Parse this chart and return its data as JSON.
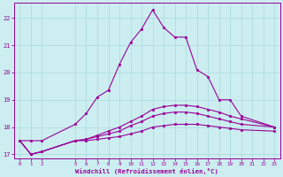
{
  "xlabel": "Windchill (Refroidissement éolien,°C)",
  "bg_color": "#cceef0",
  "grid_color": "#aad8dc",
  "line_color": "#990099",
  "xlim": [
    -0.5,
    23.5
  ],
  "ylim": [
    16.85,
    22.55
  ],
  "xticks": [
    0,
    1,
    2,
    5,
    6,
    7,
    8,
    9,
    10,
    11,
    12,
    13,
    14,
    15,
    16,
    17,
    18,
    19,
    20,
    21,
    22,
    23
  ],
  "yticks": [
    17,
    18,
    19,
    20,
    21,
    22
  ],
  "series": [
    {
      "x": [
        0,
        1,
        2,
        5,
        6,
        7,
        8,
        9,
        10,
        11,
        12,
        13,
        14,
        15,
        16,
        17,
        18,
        19,
        20,
        23
      ],
      "y": [
        17.5,
        17.5,
        17.5,
        18.1,
        18.5,
        19.1,
        19.35,
        20.3,
        21.1,
        21.6,
        22.3,
        21.65,
        21.3,
        21.3,
        20.1,
        19.85,
        19.0,
        19.0,
        18.4,
        18.0
      ]
    },
    {
      "x": [
        0,
        1,
        2,
        5,
        6,
        7,
        8,
        9,
        10,
        11,
        12,
        13,
        14,
        15,
        16,
        17,
        18,
        19,
        20,
        23
      ],
      "y": [
        17.5,
        17.0,
        17.1,
        17.5,
        17.55,
        17.7,
        17.85,
        18.0,
        18.2,
        18.4,
        18.65,
        18.75,
        18.8,
        18.8,
        18.75,
        18.65,
        18.55,
        18.4,
        18.3,
        18.0
      ]
    },
    {
      "x": [
        0,
        1,
        2,
        5,
        6,
        7,
        8,
        9,
        10,
        11,
        12,
        13,
        14,
        15,
        16,
        17,
        18,
        19,
        20,
        23
      ],
      "y": [
        17.5,
        17.0,
        17.1,
        17.5,
        17.55,
        17.65,
        17.75,
        17.85,
        18.05,
        18.2,
        18.4,
        18.5,
        18.55,
        18.55,
        18.5,
        18.4,
        18.3,
        18.2,
        18.1,
        18.0
      ]
    },
    {
      "x": [
        0,
        1,
        2,
        5,
        6,
        7,
        8,
        9,
        10,
        11,
        12,
        13,
        14,
        15,
        16,
        17,
        18,
        19,
        20,
        23
      ],
      "y": [
        17.5,
        17.0,
        17.1,
        17.5,
        17.5,
        17.55,
        17.6,
        17.65,
        17.75,
        17.85,
        18.0,
        18.05,
        18.1,
        18.1,
        18.1,
        18.05,
        18.0,
        17.95,
        17.9,
        17.85
      ]
    }
  ]
}
